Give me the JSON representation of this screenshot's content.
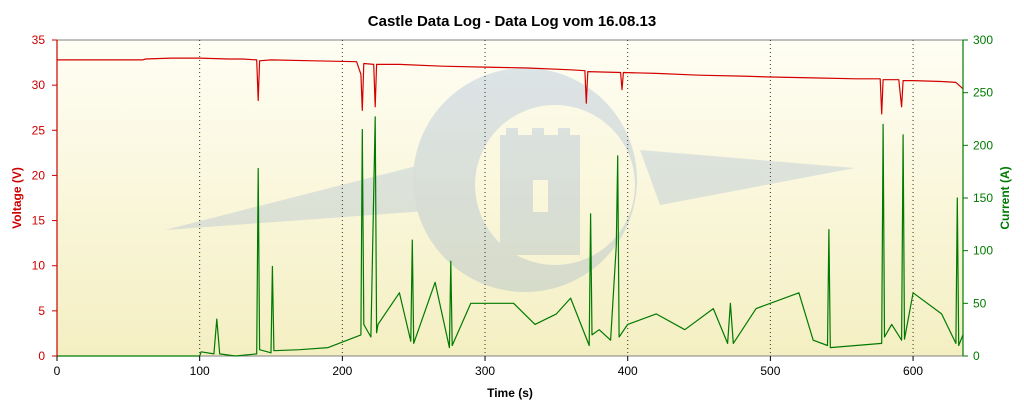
{
  "chart_data": {
    "type": "line",
    "title": "Castle Data Log - Data Log vom 16.08.13",
    "xlabel": "Time (s)",
    "ylabel_left": "Voltage (V)",
    "ylabel_right": "Current (A)",
    "xlim": [
      0,
      635
    ],
    "ylim_left": [
      0,
      35
    ],
    "ylim_right": [
      0,
      300
    ],
    "x_ticks": [
      0,
      100,
      200,
      300,
      400,
      500,
      600
    ],
    "y_ticks_left": [
      0,
      5,
      10,
      15,
      20,
      25,
      30,
      35
    ],
    "y_ticks_right": [
      0,
      50,
      100,
      150,
      200,
      250,
      300
    ],
    "grid": "vertical-dotted",
    "colors": {
      "voltage": "#d40000",
      "current": "#007a00",
      "left_axis": "#cc0000",
      "right_axis": "#007a00",
      "background": "#fbf8dc"
    },
    "series": [
      {
        "name": "Voltage (V)",
        "axis": "left",
        "x": [
          0,
          60,
          62,
          80,
          100,
          120,
          130,
          140,
          141,
          142,
          150,
          180,
          210,
          213,
          214,
          215,
          222,
          223,
          224,
          240,
          270,
          300,
          330,
          360,
          370,
          371,
          372,
          395,
          396,
          397,
          420,
          450,
          480,
          500,
          530,
          560,
          577,
          578,
          579,
          590,
          592,
          593,
          600,
          620,
          630,
          635
        ],
        "values": [
          32.8,
          32.8,
          32.9,
          33.0,
          33.0,
          32.9,
          32.9,
          32.8,
          28.3,
          32.7,
          32.8,
          32.7,
          32.6,
          31.2,
          27.2,
          32.4,
          32.3,
          27.6,
          32.3,
          32.3,
          32.1,
          32.0,
          31.9,
          31.7,
          31.6,
          28.0,
          31.5,
          31.4,
          29.5,
          31.4,
          31.3,
          31.1,
          31.0,
          30.9,
          30.8,
          30.7,
          30.7,
          26.8,
          30.6,
          30.6,
          27.6,
          30.5,
          30.5,
          30.4,
          30.3,
          29.6
        ]
      },
      {
        "name": "Current (A)",
        "axis": "right",
        "x": [
          0,
          100,
          101,
          110,
          112,
          114,
          125,
          140,
          141,
          142,
          150,
          151,
          152,
          170,
          190,
          213,
          214,
          215,
          220,
          223,
          224,
          225,
          240,
          248,
          249,
          250,
          265,
          275,
          276,
          277,
          290,
          320,
          335,
          350,
          360,
          373,
          374,
          375,
          380,
          388,
          392,
          393,
          394,
          400,
          420,
          440,
          460,
          470,
          472,
          474,
          490,
          520,
          530,
          540,
          541,
          542,
          560,
          578,
          579,
          580,
          585,
          592,
          593,
          594,
          600,
          620,
          630,
          631,
          632,
          635
        ],
        "values": [
          0,
          0,
          4,
          2,
          35,
          2,
          0,
          2,
          178,
          6,
          3,
          85,
          5,
          6,
          8,
          20,
          215,
          30,
          18,
          227,
          22,
          30,
          60,
          14,
          110,
          12,
          70,
          8,
          90,
          10,
          50,
          50,
          30,
          40,
          55,
          10,
          135,
          20,
          25,
          15,
          105,
          190,
          18,
          30,
          40,
          25,
          45,
          12,
          50,
          12,
          45,
          60,
          15,
          10,
          120,
          8,
          10,
          12,
          220,
          18,
          30,
          15,
          210,
          16,
          60,
          40,
          12,
          150,
          10,
          20
        ]
      }
    ]
  }
}
